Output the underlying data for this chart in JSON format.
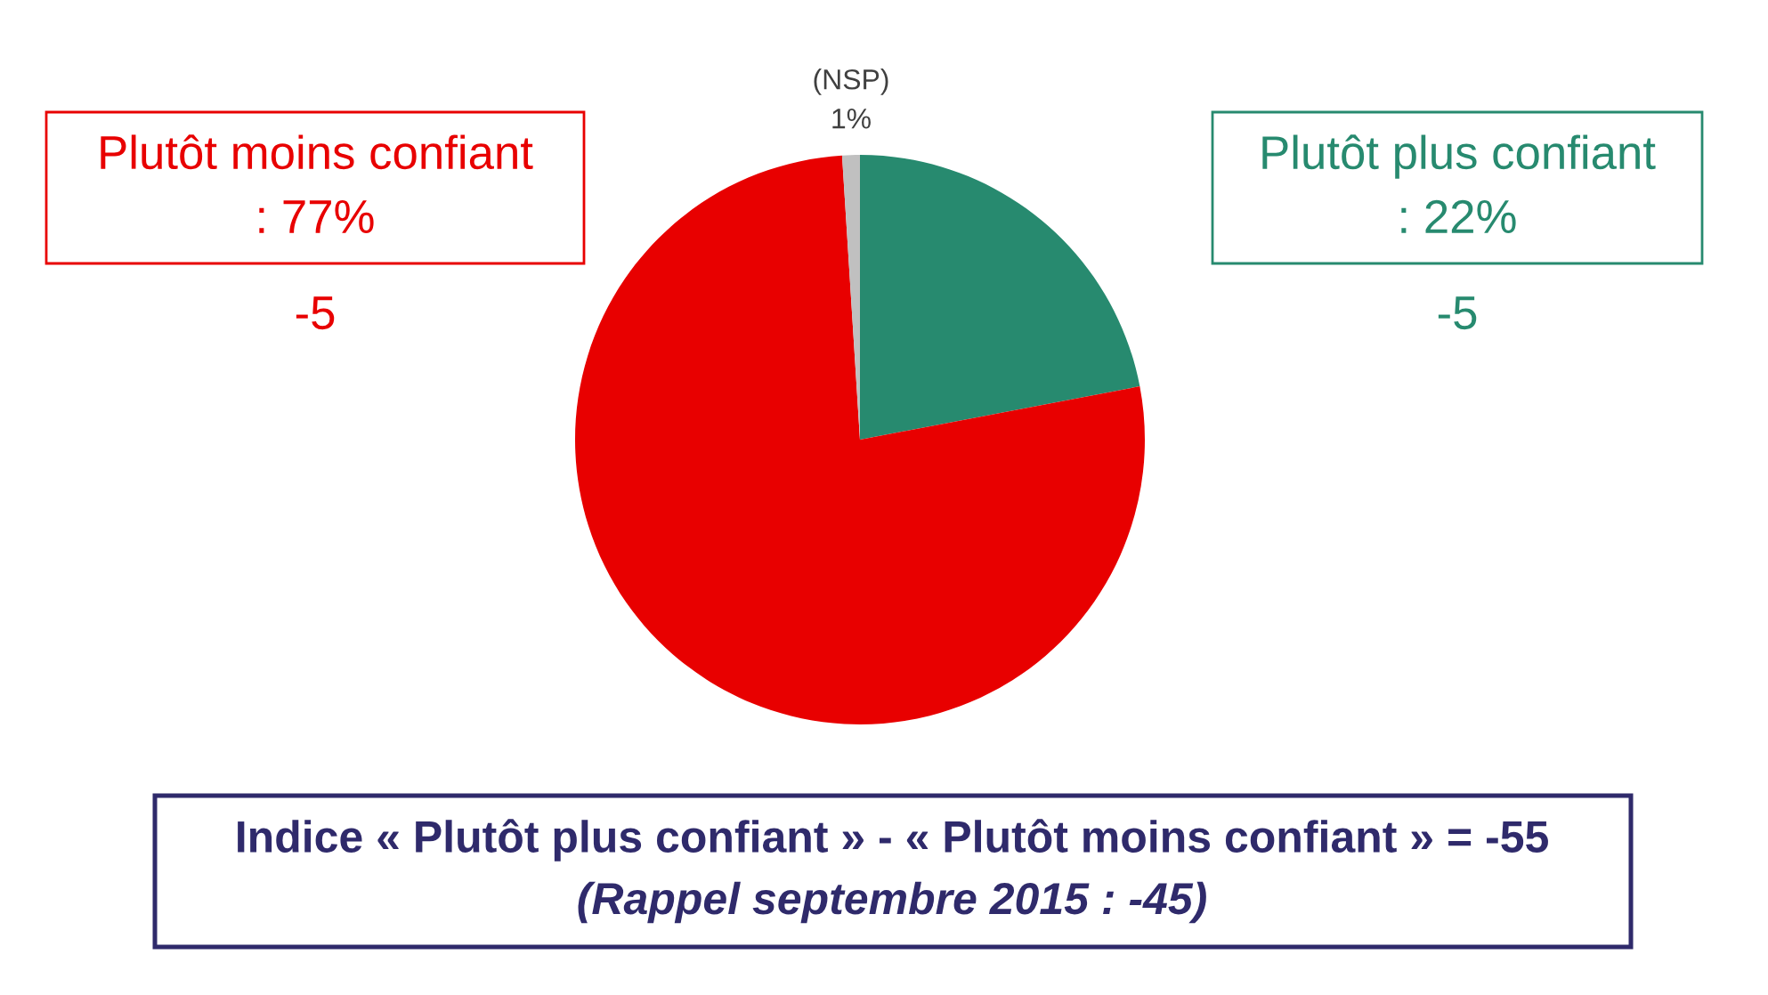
{
  "chart_data": {
    "type": "pie",
    "categories": [
      "Plutôt plus confiant",
      "Plutôt moins confiant",
      "(NSP)"
    ],
    "values": [
      22,
      77,
      1
    ],
    "colors": [
      "#278a6f",
      "#e80000",
      "#c0c0c0"
    ],
    "value_labels": [
      ": 22%",
      ": 77%",
      "1%"
    ],
    "annotations": [
      "-5",
      "-5",
      "Indice « Plutôt plus confiant » - « Plutôt moins confiant » = -55",
      "(Rappel septembre 2015 : -45)"
    ]
  }
}
